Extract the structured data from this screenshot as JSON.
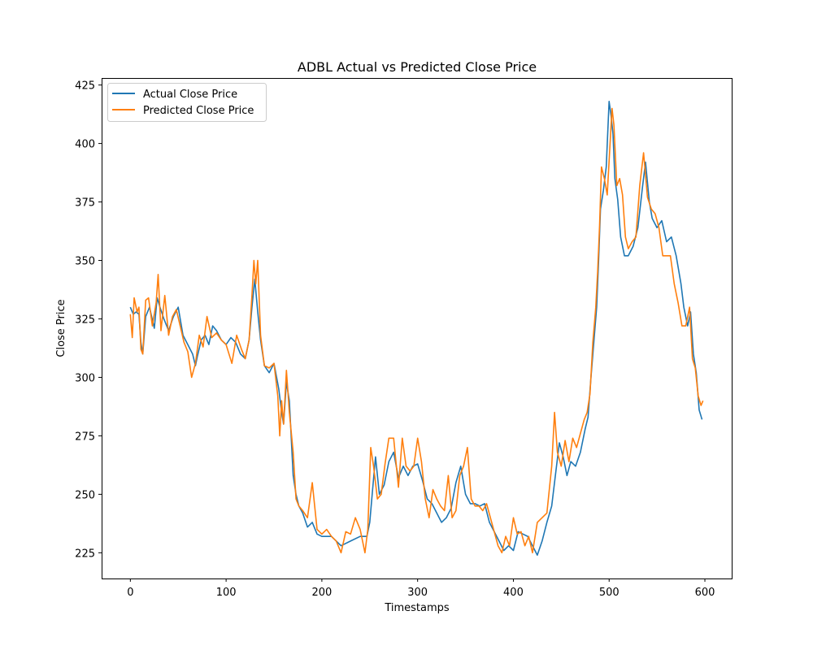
{
  "chart_data": {
    "type": "line",
    "title": "ADBL Actual vs Predicted Close Price",
    "xlabel": "Timestamps",
    "ylabel": "Close Price",
    "xlim": [
      -30,
      628
    ],
    "ylim": [
      214,
      428
    ],
    "xticks": [
      0,
      100,
      200,
      300,
      400,
      500,
      600
    ],
    "xtick_labels": [
      "0",
      "100",
      "200",
      "300",
      "400",
      "500",
      "600"
    ],
    "yticks": [
      225,
      250,
      275,
      300,
      325,
      350,
      375,
      400,
      425
    ],
    "ytick_labels": [
      "225",
      "250",
      "275",
      "300",
      "325",
      "350",
      "375",
      "400",
      "425"
    ],
    "grid": false,
    "legend_position": "top-left",
    "series": [
      {
        "name": "Actual Close Price",
        "color": "#1f77b4",
        "x": [
          0,
          3,
          6,
          9,
          11,
          13,
          16,
          20,
          25,
          28,
          31,
          35,
          40,
          45,
          50,
          55,
          60,
          65,
          68,
          70,
          74,
          78,
          82,
          86,
          90,
          95,
          100,
          105,
          110,
          115,
          120,
          124,
          127,
          130,
          133,
          136,
          140,
          145,
          150,
          155,
          158,
          160,
          163,
          166,
          170,
          173,
          176,
          180,
          185,
          190,
          195,
          200,
          210,
          220,
          230,
          240,
          247,
          250,
          253,
          256,
          260,
          265,
          270,
          275,
          280,
          285,
          290,
          295,
          300,
          305,
          310,
          315,
          320,
          325,
          330,
          335,
          340,
          345,
          350,
          355,
          360,
          365,
          370,
          375,
          380,
          385,
          390,
          395,
          400,
          405,
          410,
          415,
          420,
          425,
          430,
          435,
          440,
          445,
          448,
          452,
          456,
          460,
          465,
          470,
          475,
          478,
          481,
          484,
          487,
          489,
          491,
          494,
          497,
          500,
          502,
          504,
          506,
          509,
          512,
          516,
          520,
          525,
          530,
          535,
          538,
          542,
          545,
          550,
          555,
          560,
          565,
          570,
          575,
          578,
          582,
          585,
          588,
          591,
          594,
          597
        ],
        "y": [
          330,
          327,
          328,
          327,
          315,
          310,
          326,
          330,
          321,
          334,
          330,
          325,
          320,
          326,
          330,
          318,
          314,
          310,
          305,
          309,
          316,
          318,
          314,
          322,
          320,
          316,
          314,
          317,
          315,
          310,
          308,
          316,
          330,
          342,
          328,
          316,
          305,
          302,
          306,
          295,
          285,
          280,
          298,
          290,
          258,
          250,
          245,
          242,
          236,
          238,
          233,
          232,
          232,
          228,
          230,
          232,
          232,
          238,
          252,
          266,
          250,
          254,
          264,
          268,
          257,
          262,
          258,
          262,
          263,
          256,
          248,
          246,
          242,
          238,
          240,
          244,
          255,
          262,
          250,
          246,
          246,
          245,
          246,
          238,
          234,
          230,
          226,
          228,
          226,
          234,
          233,
          232,
          228,
          224,
          230,
          238,
          245,
          262,
          272,
          266,
          258,
          264,
          262,
          268,
          278,
          283,
          300,
          315,
          330,
          350,
          372,
          380,
          390,
          418,
          412,
          404,
          385,
          376,
          360,
          352,
          352,
          356,
          364,
          382,
          392,
          375,
          368,
          364,
          367,
          358,
          360,
          352,
          340,
          330,
          322,
          328,
          310,
          302,
          286,
          282
        ]
      },
      {
        "name": "Predicted Close Price",
        "color": "#ff7f0e",
        "x": [
          0,
          2,
          4,
          7,
          9,
          11,
          13,
          16,
          19,
          23,
          27,
          29,
          32,
          36,
          40,
          44,
          48,
          52,
          56,
          60,
          64,
          68,
          72,
          76,
          80,
          85,
          90,
          95,
          100,
          106,
          111,
          116,
          120,
          124,
          127,
          129,
          131,
          133,
          136,
          140,
          145,
          150,
          154,
          156,
          158,
          160,
          163,
          166,
          170,
          173,
          176,
          180,
          185,
          190,
          195,
          200,
          205,
          210,
          215,
          220,
          225,
          230,
          235,
          240,
          245,
          248,
          251,
          254,
          258,
          262,
          266,
          270,
          275,
          280,
          284,
          288,
          292,
          296,
          300,
          304,
          308,
          312,
          316,
          320,
          324,
          328,
          332,
          336,
          340,
          344,
          348,
          352,
          356,
          360,
          364,
          368,
          372,
          376,
          380,
          384,
          388,
          392,
          396,
          400,
          404,
          408,
          412,
          416,
          420,
          425,
          430,
          435,
          440,
          443,
          446,
          450,
          454,
          458,
          462,
          466,
          470,
          474,
          477,
          480,
          483,
          486,
          488,
          490,
          492,
          495,
          498,
          501,
          503,
          505,
          508,
          511,
          514,
          517,
          520,
          524,
          528,
          532,
          536,
          540,
          544,
          548,
          552,
          556,
          560,
          564,
          568,
          572,
          576,
          580,
          584,
          587,
          590,
          593,
          596,
          598
        ],
        "y": [
          327,
          317,
          334,
          328,
          330,
          312,
          310,
          333,
          334,
          322,
          332,
          344,
          320,
          335,
          318,
          326,
          329,
          322,
          315,
          311,
          300,
          306,
          318,
          313,
          326,
          317,
          319,
          316,
          314,
          306,
          318,
          312,
          308,
          316,
          335,
          350,
          340,
          350,
          318,
          305,
          304,
          306,
          292,
          275,
          290,
          280,
          303,
          285,
          268,
          248,
          245,
          243,
          240,
          255,
          235,
          233,
          235,
          232,
          230,
          225,
          234,
          233,
          240,
          235,
          225,
          235,
          270,
          262,
          248,
          250,
          263,
          274,
          274,
          253,
          274,
          262,
          260,
          262,
          274,
          264,
          248,
          240,
          252,
          248,
          245,
          243,
          258,
          240,
          243,
          258,
          262,
          270,
          248,
          245,
          245,
          243,
          246,
          240,
          234,
          228,
          225,
          232,
          228,
          240,
          233,
          234,
          228,
          232,
          225,
          238,
          240,
          242,
          262,
          285,
          268,
          262,
          273,
          264,
          274,
          270,
          276,
          282,
          285,
          293,
          315,
          330,
          345,
          365,
          390,
          385,
          378,
          400,
          415,
          408,
          382,
          385,
          378,
          360,
          355,
          358,
          360,
          382,
          396,
          377,
          372,
          370,
          364,
          352,
          352,
          352,
          340,
          332,
          322,
          322,
          330,
          308,
          304,
          292,
          288,
          290
        ]
      }
    ]
  }
}
